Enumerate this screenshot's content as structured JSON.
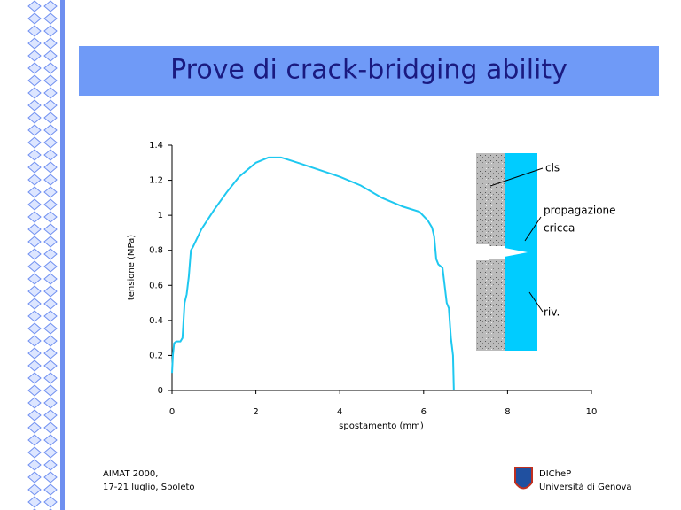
{
  "chart_data": {
    "type": "line",
    "title": "Prove di crack-bridging ability",
    "x_label": "spostamento (mm)",
    "y_label": "tensione (MPa)",
    "x": [
      0,
      0.02,
      0.05,
      0.1,
      0.2,
      0.25,
      0.3,
      0.35,
      0.4,
      0.45,
      0.5,
      0.7,
      1,
      1.3,
      1.6,
      2,
      2.3,
      2.6,
      3,
      3.5,
      4,
      4.5,
      5,
      5.5,
      5.9,
      6.1,
      6.2,
      6.25,
      6.3,
      6.35,
      6.45,
      6.5,
      6.55,
      6.6,
      6.65,
      6.7,
      6.72
    ],
    "values": [
      0.1,
      0.2,
      0.27,
      0.28,
      0.28,
      0.3,
      0.5,
      0.55,
      0.65,
      0.8,
      0.82,
      0.92,
      1.03,
      1.13,
      1.22,
      1.3,
      1.33,
      1.33,
      1.3,
      1.26,
      1.22,
      1.17,
      1.1,
      1.05,
      1.02,
      0.97,
      0.93,
      0.88,
      0.75,
      0.72,
      0.7,
      0.6,
      0.5,
      0.47,
      0.3,
      0.2,
      0
    ],
    "color": "#1ec8f0",
    "xlim": [
      0,
      10
    ],
    "xticks": [
      0,
      2,
      4,
      6,
      8,
      10
    ],
    "ylim": [
      0,
      1.4
    ],
    "yticks": [
      0,
      0.2,
      0.4,
      0.6,
      0.8,
      1,
      1.2,
      1.4
    ],
    "annotations": [
      "cls",
      "propagazione",
      "cricca",
      "riv."
    ]
  },
  "footer": {
    "left": [
      "AIMAT 2000,",
      "17-21 luglio, Spoleto"
    ],
    "right": [
      "DICheP",
      "Università di Genova"
    ]
  }
}
